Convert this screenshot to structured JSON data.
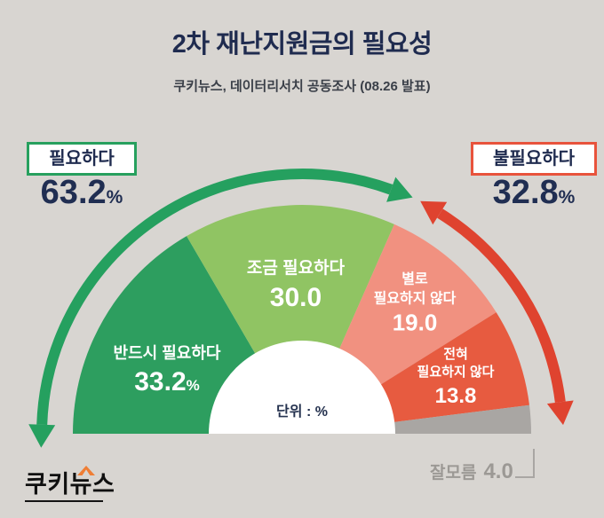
{
  "header": {
    "title": "2차 재난지원금의 필요성",
    "subtitle": "쿠키뉴스, 데이터리서치 공동조사 (08.26 발표)"
  },
  "summary": {
    "positive": {
      "label": "필요하다",
      "value": "63.2",
      "unit": "%",
      "color": "#27a05e"
    },
    "negative": {
      "label": "불필요하다",
      "value": "32.8",
      "unit": "%",
      "color": "#e8533c"
    }
  },
  "chart_data": {
    "type": "pie",
    "variant": "semicircle-half-donut",
    "direction": "left-to-right",
    "total": 100,
    "unit_label": "단위 : %",
    "segments": [
      {
        "label": "반드시 필요하다",
        "label_display": "반드시 필요하다",
        "value": 33.2,
        "value_display": "33.2",
        "unit": "%",
        "color": "#2d9e5f"
      },
      {
        "label": "조금 필요하다",
        "label_display": "조금 필요하다",
        "value": 30.0,
        "value_display": "30.0",
        "unit": "",
        "color": "#90c463"
      },
      {
        "label": "별로 필요하지 않다",
        "label_display": "별로\n필요하지 않다",
        "value": 19.0,
        "value_display": "19.0",
        "unit": "",
        "color": "#f19180"
      },
      {
        "label": "전혀 필요하지 않다",
        "label_display": "전혀\n필요하지 않다",
        "value": 13.8,
        "value_display": "13.8",
        "unit": "",
        "color": "#e75b40"
      },
      {
        "label": "잘모름",
        "label_display": "잘모름",
        "value": 4.0,
        "value_display": "4.0",
        "unit": "",
        "color": "#a9a6a3"
      }
    ],
    "arrows": {
      "positive_color": "#25a05f",
      "negative_color": "#df432f"
    },
    "leader_color": "#a9a6a3"
  },
  "colors": {
    "background": "#d8d5d1",
    "title_text": "#1f2b4f",
    "value_text": "#202e52",
    "unknown_text": "#9c9995",
    "logo_orange": "#ef7e35"
  },
  "footer": {
    "logo_text": "쿠키뉴스"
  }
}
